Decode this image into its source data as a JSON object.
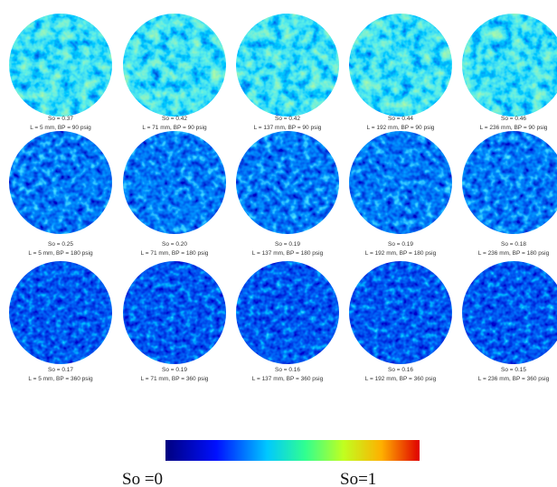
{
  "panels": [
    [
      {
        "so": "So = 0.37",
        "params": "L = 5 mm, BP = 90 psig"
      },
      {
        "so": "So = 0.42",
        "params": "L = 71 mm, BP = 90 psig"
      },
      {
        "so": "So = 0.42",
        "params": "L = 137 mm, BP = 90 psig"
      },
      {
        "so": "So = 0.44",
        "params": "L = 192 mm, BP = 90 psig"
      },
      {
        "so": "So = 0.46",
        "params": "L = 236 mm, BP = 90 psig"
      }
    ],
    [
      {
        "so": "So = 0.25",
        "params": "L = 5 mm, BP = 180 psig"
      },
      {
        "so": "So = 0.20",
        "params": "L = 71 mm, BP = 180 psig"
      },
      {
        "so": "So = 0.19",
        "params": "L = 137 mm, BP = 180 psig"
      },
      {
        "so": "So = 0.19",
        "params": "L = 192 mm, BP = 180 psig"
      },
      {
        "so": "So = 0.18",
        "params": "L = 236 mm, BP = 180 psig"
      }
    ],
    [
      {
        "so": "So = 0.17",
        "params": "L = 5 mm, BP = 360 psig"
      },
      {
        "so": "So = 0.19",
        "params": "L = 71 mm, BP = 360 psig"
      },
      {
        "so": "So = 0.16",
        "params": "L = 137 mm, BP = 360 psig"
      },
      {
        "so": "So = 0.16",
        "params": "L = 192 mm, BP = 360 psig"
      },
      {
        "so": "So = 0.15",
        "params": "L = 236 mm, BP = 360 psig"
      }
    ]
  ],
  "colorbar": {
    "min_label": "So =0",
    "max_label": "So=1"
  }
}
